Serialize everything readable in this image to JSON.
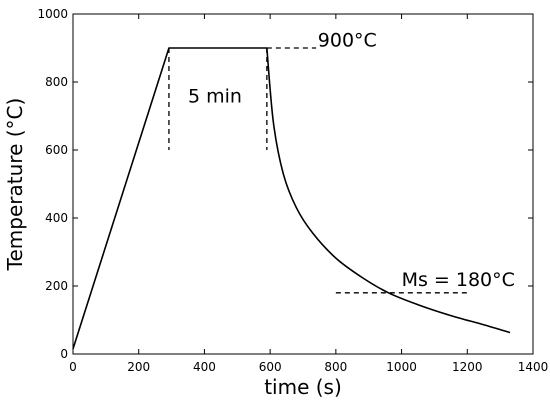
{
  "chart_data": {
    "type": "line",
    "title": "",
    "xlabel": "time (s)",
    "ylabel": "Temperature (°C)",
    "xlim": [
      0,
      1400
    ],
    "ylim": [
      0,
      1000
    ],
    "xticks": [
      0,
      200,
      400,
      600,
      800,
      1000,
      1200,
      1400
    ],
    "yticks": [
      0,
      200,
      400,
      600,
      800,
      1000
    ],
    "grid": false,
    "legend": "none",
    "series": [
      {
        "color": "#000000",
        "style": "solid",
        "x": [
          0,
          292,
          590,
          610,
          640,
          680,
          730,
          800,
          880,
          960,
          1050,
          1150,
          1250,
          1330
        ],
        "y": [
          15,
          900,
          900,
          680,
          530,
          430,
          355,
          282,
          225,
          180,
          145,
          113,
          86,
          63
        ]
      }
    ],
    "reference_lines": [
      {
        "style": "dashed",
        "x": [
          590,
          740
        ],
        "y": [
          900,
          900
        ]
      },
      {
        "style": "dashed",
        "x": [
          800,
          1210
        ],
        "y": [
          180,
          180
        ]
      },
      {
        "style": "dashed",
        "x": [
          292,
          292
        ],
        "y": [
          900,
          600
        ]
      },
      {
        "style": "dashed",
        "x": [
          590,
          590
        ],
        "y": [
          900,
          600
        ]
      }
    ],
    "annotations": [
      {
        "text": "900°C",
        "x": 745,
        "y": 905
      },
      {
        "text": "5 min",
        "x": 350,
        "y": 740
      },
      {
        "text": "Ms = 180°C",
        "x": 1000,
        "y": 200
      }
    ]
  }
}
